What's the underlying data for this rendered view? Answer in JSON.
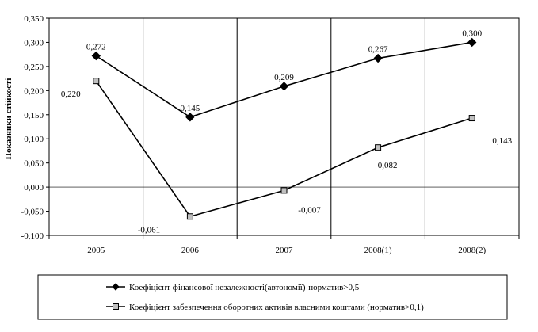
{
  "chart_data": {
    "type": "line",
    "categories": [
      "2005",
      "2006",
      "2007",
      "2008(1)",
      "2008(2)"
    ],
    "ylabel": "Показники стійкості",
    "xlabel": "",
    "ylim": [
      -0.1,
      0.35
    ],
    "y_ticks": [
      "0,350",
      "0,300",
      "0,250",
      "0,200",
      "0,150",
      "0,100",
      "0,050",
      "0,000",
      "-0,050",
      "-0,100"
    ],
    "y_tick_values": [
      0.35,
      0.3,
      0.25,
      0.2,
      0.15,
      0.1,
      0.05,
      0.0,
      -0.05,
      -0.1
    ],
    "grid": "vertical",
    "legend_position": "bottom",
    "series": [
      {
        "name": "Коефіцієнт фінансової незалежності(автономії)-норматив>0,5",
        "values": [
          0.272,
          0.145,
          0.209,
          0.267,
          0.3
        ],
        "labels": [
          "0,272",
          "0,145",
          "0,209",
          "0,267",
          "0,300"
        ],
        "marker": "diamond",
        "color": "#000000"
      },
      {
        "name": "Коефіцієнт забезпечення оборотних активів власними коштами (норматив>0,1)",
        "values": [
          0.22,
          -0.061,
          -0.007,
          0.082,
          0.143
        ],
        "labels": [
          "0,220",
          "-0,061",
          "-0,007",
          "0,082",
          "0,143"
        ],
        "marker": "square",
        "color": "#000000",
        "marker_fill": "#c0c0c0"
      }
    ]
  }
}
